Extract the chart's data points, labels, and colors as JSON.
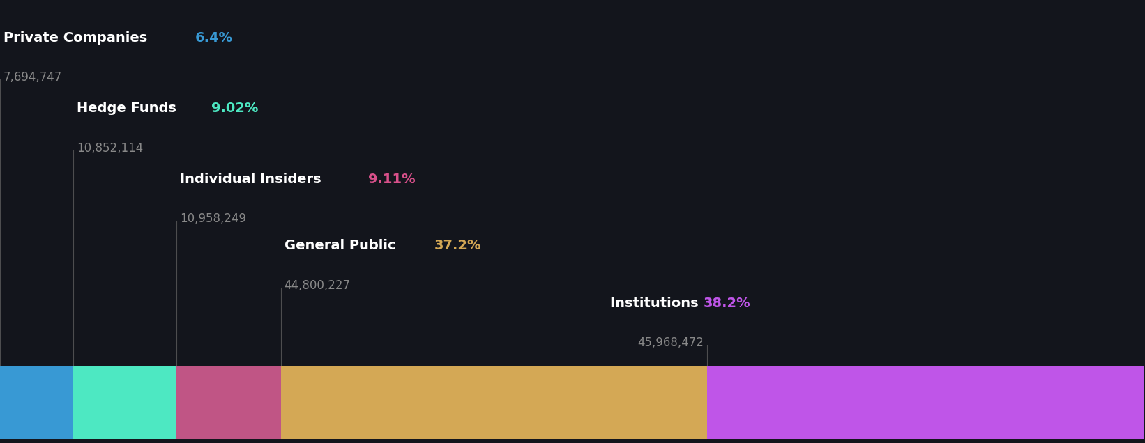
{
  "background_color": "#13151c",
  "categories": [
    {
      "name": "Private Companies",
      "pct_str": "6.4%",
      "percentage": 6.4,
      "value_str": "7,694,747",
      "color": "#3899d4",
      "pct_color": "#3899d4",
      "name_color": "#ffffff",
      "label_row": 0,
      "align": "left"
    },
    {
      "name": "Hedge Funds",
      "pct_str": "9.02%",
      "percentage": 9.02,
      "value_str": "10,852,114",
      "color": "#4de8c2",
      "pct_color": "#4de8c2",
      "name_color": "#ffffff",
      "label_row": 1,
      "align": "left"
    },
    {
      "name": "Individual Insiders",
      "pct_str": "9.11%",
      "percentage": 9.11,
      "value_str": "10,958,249",
      "color": "#c05585",
      "pct_color": "#d8508a",
      "name_color": "#ffffff",
      "label_row": 2,
      "align": "left"
    },
    {
      "name": "General Public",
      "pct_str": "37.2%",
      "percentage": 37.2,
      "value_str": "44,800,227",
      "color": "#d4a855",
      "pct_color": "#d4a855",
      "name_color": "#ffffff",
      "label_row": 3,
      "align": "left"
    },
    {
      "name": "Institutions",
      "pct_str": "38.2%",
      "percentage": 38.2,
      "value_str": "45,968,472",
      "color": "#bf55e8",
      "pct_color": "#bf55e8",
      "name_color": "#ffffff",
      "label_row": 4,
      "align": "right"
    }
  ],
  "vertical_line_color": "#666666",
  "value_color": "#888888",
  "font_size_name": 14,
  "font_size_pct": 14,
  "font_size_value": 12
}
